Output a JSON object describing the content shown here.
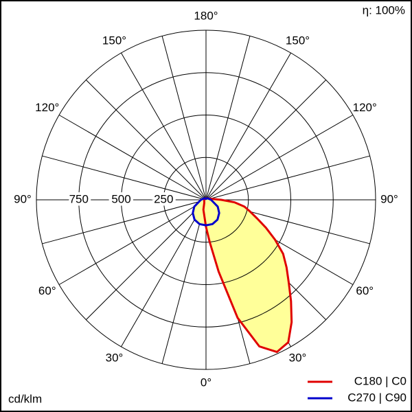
{
  "chart_data": {
    "type": "polar",
    "efficiency_label": "η: 100%",
    "unit_label": "cd/klm",
    "rlim": [
      0,
      1000
    ],
    "rticks": [
      250,
      500,
      750
    ],
    "angle_grid_step": 15,
    "angle_ticks": [
      {
        "value": 0,
        "label": "0°"
      },
      {
        "value": 30,
        "label": "30°"
      },
      {
        "value": 60,
        "label": "60°"
      },
      {
        "value": 90,
        "label": "90°"
      },
      {
        "value": 120,
        "label": "120°"
      },
      {
        "value": 150,
        "label": "150°"
      },
      {
        "value": 180,
        "label": "180°"
      },
      {
        "value": -30,
        "label": "30°"
      },
      {
        "value": -60,
        "label": "60°"
      },
      {
        "value": -90,
        "label": "90°"
      },
      {
        "value": -120,
        "label": "120°"
      },
      {
        "value": -150,
        "label": "150°"
      }
    ],
    "fill_color": "#ffff99",
    "series": [
      {
        "name": "C180 | C0",
        "color": "#e00000",
        "angles": [
          -180,
          -120,
          -90,
          -60,
          -30,
          -15,
          0,
          5,
          10,
          15,
          20,
          25,
          30,
          35,
          40,
          45,
          50,
          55,
          60,
          65,
          70,
          75,
          80,
          85,
          90,
          120,
          150
        ],
        "values": [
          10,
          8,
          10,
          12,
          20,
          60,
          160,
          250,
          430,
          720,
          920,
          990,
          970,
          880,
          780,
          690,
          620,
          555,
          470,
          390,
          320,
          270,
          230,
          170,
          90,
          15,
          10
        ]
      },
      {
        "name": "C270 | C90",
        "color": "#0000cc",
        "angles": [
          -180,
          -150,
          -120,
          -90,
          -60,
          -45,
          -30,
          -15,
          0,
          15,
          30,
          45,
          60,
          90,
          120,
          150
        ],
        "values": [
          5,
          10,
          15,
          30,
          80,
          110,
          135,
          148,
          150,
          148,
          135,
          110,
          80,
          30,
          15,
          10
        ]
      }
    ]
  }
}
